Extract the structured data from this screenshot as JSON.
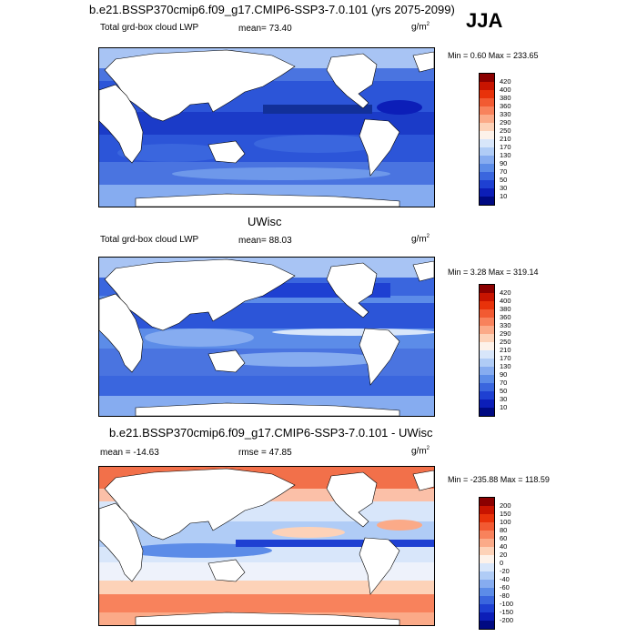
{
  "season": "JJA",
  "panels": [
    {
      "title": "b.e21.BSSP370cmip6.f09_g17.CMIP6-SSP3-7.0.101 (yrs 2075-2099)",
      "left_label": "Total grd-box cloud LWP",
      "center_label": "mean=  73.40",
      "units": "g/m",
      "units_sup": "2",
      "minmax": "Min =   0.60 Max = 233.65",
      "colorbar": {
        "labels": [
          "420",
          "400",
          "380",
          "360",
          "330",
          "290",
          "250",
          "210",
          "170",
          "130",
          "90",
          "70",
          "50",
          "30",
          "10"
        ],
        "colors": [
          "#8b0000",
          "#c81400",
          "#e8320a",
          "#f25a32",
          "#f8825c",
          "#fbaa88",
          "#fdd2b8",
          "#fdf2ea",
          "#d8e6fa",
          "#b0ccf6",
          "#86acf0",
          "#5c8ce8",
          "#3a66de",
          "#1e40d2",
          "#0c1eb8",
          "#000a82"
        ]
      }
    },
    {
      "title": "UWisc",
      "left_label": "Total grd-box cloud LWP",
      "center_label": "mean=  88.03",
      "units": "g/m",
      "units_sup": "2",
      "minmax": "Min =   3.28 Max = 319.14",
      "colorbar": {
        "labels": [
          "420",
          "400",
          "380",
          "360",
          "330",
          "290",
          "250",
          "210",
          "170",
          "130",
          "90",
          "70",
          "50",
          "30",
          "10"
        ],
        "colors": [
          "#8b0000",
          "#c81400",
          "#e8320a",
          "#f25a32",
          "#f8825c",
          "#fbaa88",
          "#fdd2b8",
          "#fdf2ea",
          "#d8e6fa",
          "#b0ccf6",
          "#86acf0",
          "#5c8ce8",
          "#3a66de",
          "#1e40d2",
          "#0c1eb8",
          "#000a82"
        ]
      }
    },
    {
      "title": "b.e21.BSSP370cmip6.f09_g17.CMIP6-SSP3-7.0.101 - UWisc",
      "left_label": "mean = -14.63",
      "center_label": "rmse =  47.85",
      "units": "g/m",
      "units_sup": "2",
      "minmax": "Min = -235.88 Max = 118.59",
      "colorbar": {
        "labels": [
          "200",
          "150",
          "100",
          "80",
          "60",
          "40",
          "20",
          "0",
          "-20",
          "-40",
          "-60",
          "-80",
          "-100",
          "-150",
          "-200"
        ],
        "colors": [
          "#8b0000",
          "#c81400",
          "#e8320a",
          "#f25a32",
          "#f8825c",
          "#fbaa88",
          "#fdd2b8",
          "#fdf2ea",
          "#d8e6fa",
          "#b0ccf6",
          "#86acf0",
          "#5c8ce8",
          "#3a66de",
          "#1e40d2",
          "#0c1eb8",
          "#000a82"
        ]
      }
    }
  ]
}
